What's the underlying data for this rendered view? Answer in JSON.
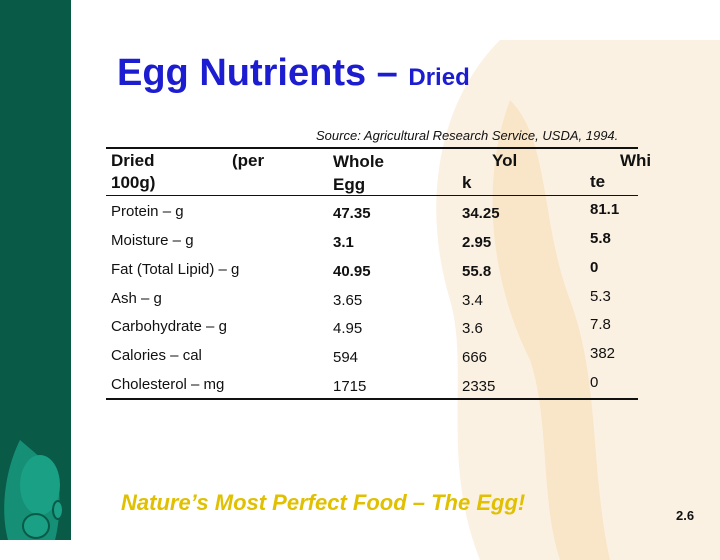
{
  "slide": {
    "title": "Egg Nutrients –",
    "title_sub": "Dried",
    "source": "Source: Agricultural Research Service, USDA, 1994.",
    "footer": "Nature’s Most Perfect Food – The Egg!",
    "page_number": "2.6",
    "colors": {
      "sidebar": "#0a5a48",
      "title": "#1c1cd0",
      "footer": "#e0c000"
    }
  },
  "table": {
    "headers": [
      {
        "line1": "Dried",
        "line1b": "(per",
        "line2": "100g)"
      },
      {
        "line1": "Whole",
        "line2": "Egg"
      },
      {
        "line1": "Yol",
        "line2": "k"
      },
      {
        "line1": "Whi",
        "line2": "te"
      }
    ],
    "rows": [
      {
        "label": "Protein – g",
        "values": [
          "47.35",
          "34.25",
          "81.1"
        ]
      },
      {
        "label": "Moisture – g",
        "values": [
          "3.1",
          "2.95",
          "5.8"
        ]
      },
      {
        "label": "Fat (Total Lipid) – g",
        "values": [
          "40.95",
          "55.8",
          "0"
        ]
      },
      {
        "label": "Ash – g",
        "values": [
          "3.65",
          "3.4",
          "5.3"
        ]
      },
      {
        "label": "Carbohydrate – g",
        "values": [
          "4.95",
          "3.6",
          "7.8"
        ]
      },
      {
        "label": "Calories – cal",
        "values": [
          "594",
          "666",
          "382"
        ]
      },
      {
        "label": "Cholesterol – mg",
        "values": [
          "1715",
          "2335",
          "0"
        ]
      }
    ]
  }
}
